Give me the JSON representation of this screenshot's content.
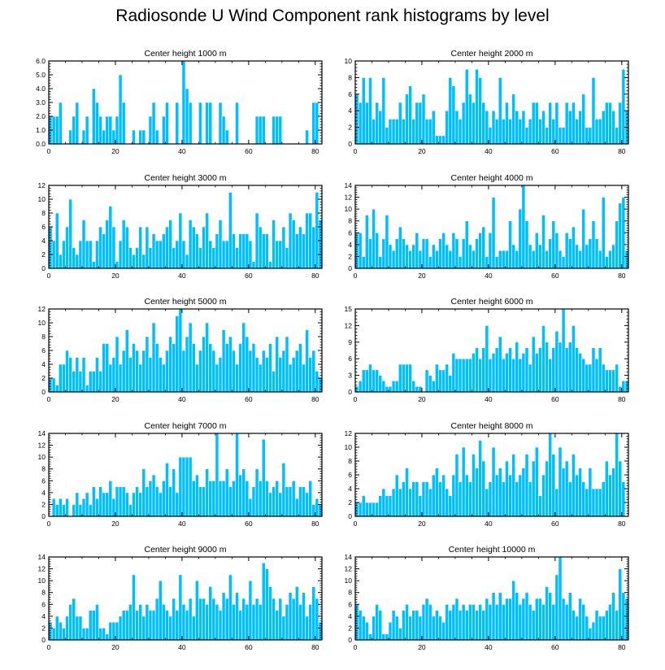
{
  "figure": {
    "title": "Radiosonde U Wind Component rank histograms by level"
  },
  "colors": {
    "bar": "#00bfff",
    "bar_edge": "#ffffff",
    "axis": "#000000"
  },
  "chart_data": [
    {
      "type": "bar",
      "title": "Center height 1000 m",
      "xlim": [
        0,
        82
      ],
      "ylim": [
        0,
        6
      ],
      "xticks": [
        0,
        20,
        40,
        60,
        80
      ],
      "yticks": [
        0,
        1,
        2,
        3,
        4,
        5,
        6
      ],
      "ytick_labels": [
        "0.0",
        "1.0",
        "2.0",
        "3.0",
        "4.0",
        "5.0",
        "6.0"
      ],
      "values": [
        2,
        2,
        2,
        3,
        0,
        0,
        1,
        2,
        3,
        0,
        1,
        2,
        0,
        4,
        3,
        2,
        1,
        2,
        2,
        1,
        2,
        5,
        3,
        0,
        0,
        1,
        0,
        1,
        1,
        0,
        2,
        3,
        1,
        0,
        2,
        3,
        0,
        0,
        3,
        0,
        6,
        4,
        3,
        0,
        0,
        3,
        0,
        3,
        3,
        0,
        0,
        3,
        2,
        1,
        0,
        0,
        3,
        0,
        0,
        0,
        0,
        0,
        2,
        2,
        2,
        0,
        0,
        2,
        2,
        2,
        0,
        0,
        0,
        0,
        0,
        0,
        0,
        1,
        0,
        3,
        3,
        0
      ]
    },
    {
      "type": "bar",
      "title": "Center height 2000 m",
      "xlim": [
        0,
        82
      ],
      "ylim": [
        0,
        10
      ],
      "xticks": [
        0,
        20,
        40,
        60,
        80
      ],
      "yticks": [
        0,
        2,
        4,
        6,
        8,
        10
      ],
      "ytick_labels": [
        "0",
        "2",
        "4",
        "6",
        "8",
        "10"
      ],
      "values": [
        6,
        5,
        8,
        5,
        8,
        3,
        5,
        4,
        8,
        2,
        3,
        3,
        3,
        5,
        3,
        6,
        7,
        3,
        5,
        5,
        6,
        3,
        3,
        4,
        1,
        1,
        1,
        4,
        8,
        7,
        4,
        3,
        5,
        9,
        6,
        5,
        9,
        8,
        5,
        4,
        2,
        4,
        3,
        8,
        3,
        5,
        3,
        6,
        4,
        3,
        4,
        2,
        3,
        5,
        5,
        3,
        4,
        2,
        5,
        3,
        5,
        2,
        2,
        5,
        4,
        5,
        3,
        4,
        6,
        2,
        2,
        8,
        3,
        3,
        4,
        5,
        5,
        4,
        2,
        5,
        9,
        4
      ]
    },
    {
      "type": "bar",
      "title": "Center height 3000 m",
      "xlim": [
        0,
        82
      ],
      "ylim": [
        0,
        12
      ],
      "xticks": [
        0,
        20,
        40,
        60,
        80
      ],
      "yticks": [
        0,
        2,
        4,
        6,
        8,
        10,
        12
      ],
      "ytick_labels": [
        "0",
        "2",
        "4",
        "6",
        "8",
        "10",
        "12"
      ],
      "values": [
        6,
        4,
        8,
        2,
        4,
        6,
        10,
        3,
        2,
        4,
        7,
        4,
        4,
        1,
        4,
        6,
        5,
        7,
        9,
        6,
        1,
        4,
        7,
        6,
        3,
        2,
        3,
        6,
        2,
        6,
        3,
        5,
        4,
        4,
        5,
        6,
        7,
        3,
        4,
        8,
        4,
        2,
        7,
        6,
        5,
        3,
        6,
        8,
        4,
        3,
        5,
        7,
        4,
        4,
        11,
        5,
        3,
        5,
        5,
        5,
        4,
        1,
        8,
        6,
        5,
        5,
        1,
        7,
        4,
        4,
        6,
        3,
        8,
        7,
        5,
        6,
        5,
        8,
        8,
        6,
        11,
        7
      ]
    },
    {
      "type": "bar",
      "title": "Center height 4000 m",
      "xlim": [
        0,
        82
      ],
      "ylim": [
        0,
        14
      ],
      "xticks": [
        0,
        20,
        40,
        60,
        80
      ],
      "yticks": [
        0,
        2,
        4,
        6,
        8,
        10,
        12,
        14
      ],
      "ytick_labels": [
        "0",
        "2",
        "4",
        "6",
        "8",
        "10",
        "12",
        "14"
      ],
      "values": [
        6,
        6,
        2,
        9,
        5,
        10,
        6,
        2,
        5,
        9,
        4,
        3,
        5,
        7,
        5,
        4,
        3,
        4,
        6,
        3,
        5,
        5,
        2,
        4,
        3,
        5,
        6,
        4,
        3,
        6,
        5,
        2,
        5,
        8,
        4,
        3,
        5,
        6,
        7,
        2,
        6,
        12,
        2,
        3,
        3,
        3,
        8,
        4,
        3,
        10,
        14,
        8,
        4,
        3,
        6,
        4,
        9,
        3,
        5,
        8,
        6,
        3,
        2,
        6,
        5,
        7,
        4,
        3,
        10,
        4,
        5,
        8,
        5,
        3,
        12,
        2,
        3,
        4,
        8,
        11,
        12,
        3
      ]
    },
    {
      "type": "bar",
      "title": "Center height 5000 m",
      "xlim": [
        0,
        82
      ],
      "ylim": [
        0,
        12
      ],
      "xticks": [
        0,
        20,
        40,
        60,
        80
      ],
      "yticks": [
        0,
        2,
        4,
        6,
        8,
        10,
        12
      ],
      "ytick_labels": [
        "0",
        "2",
        "4",
        "6",
        "8",
        "10",
        "12"
      ],
      "values": [
        2,
        2,
        1,
        4,
        4,
        6,
        5,
        3,
        5,
        3,
        5,
        1,
        3,
        3,
        5,
        3,
        7,
        7,
        4,
        5,
        8,
        4,
        6,
        9,
        5,
        7,
        6,
        4,
        6,
        8,
        5,
        10,
        7,
        5,
        4,
        6,
        8,
        7,
        11,
        12,
        6,
        8,
        10,
        7,
        4,
        6,
        8,
        10,
        7,
        6,
        4,
        5,
        9,
        7,
        8,
        6,
        4,
        7,
        10,
        8,
        6,
        7,
        5,
        4,
        6,
        5,
        7,
        3,
        8,
        5,
        6,
        8,
        4,
        5,
        6,
        7,
        4,
        9,
        5,
        6,
        3,
        2
      ]
    },
    {
      "type": "bar",
      "title": "Center height 6000 m",
      "xlim": [
        0,
        82
      ],
      "ylim": [
        0,
        15
      ],
      "xticks": [
        0,
        20,
        40,
        60,
        80
      ],
      "yticks": [
        0,
        3,
        6,
        9,
        12,
        15
      ],
      "ytick_labels": [
        "0",
        "3",
        "6",
        "9",
        "12",
        "15"
      ],
      "values": [
        1,
        2,
        4,
        4,
        5,
        4,
        4,
        3,
        2,
        1,
        1,
        2,
        2,
        5,
        5,
        5,
        5,
        2,
        1,
        1,
        0,
        4,
        3,
        2,
        5,
        4,
        4,
        5,
        3,
        7,
        6,
        6,
        6,
        6,
        6,
        7,
        8,
        6,
        8,
        12,
        6,
        7,
        8,
        10,
        6,
        7,
        8,
        6,
        9,
        6,
        7,
        8,
        5,
        10,
        7,
        8,
        12,
        9,
        6,
        8,
        11,
        9,
        15,
        8,
        9,
        12,
        8,
        7,
        6,
        5,
        5,
        8,
        6,
        8,
        5,
        4,
        4,
        4,
        5,
        1,
        2,
        2
      ]
    },
    {
      "type": "bar",
      "title": "Center height 7000 m",
      "xlim": [
        0,
        82
      ],
      "ylim": [
        0,
        14
      ],
      "xticks": [
        0,
        20,
        40,
        60,
        80
      ],
      "yticks": [
        0,
        2,
        4,
        6,
        8,
        10,
        12,
        14
      ],
      "ytick_labels": [
        "0",
        "2",
        "4",
        "6",
        "8",
        "10",
        "12",
        "14"
      ],
      "values": [
        0,
        3,
        2,
        3,
        2,
        3,
        0,
        2,
        4,
        2,
        3,
        4,
        2,
        5,
        3,
        5,
        4,
        4,
        6,
        3,
        5,
        5,
        5,
        4,
        2,
        4,
        5,
        4,
        8,
        5,
        6,
        7,
        5,
        4,
        6,
        9,
        5,
        8,
        4,
        10,
        10,
        10,
        10,
        6,
        7,
        5,
        5,
        8,
        6,
        6,
        14,
        6,
        6,
        8,
        5,
        6,
        14,
        7,
        8,
        6,
        3,
        5,
        8,
        6,
        13,
        6,
        4,
        5,
        6,
        4,
        9,
        5,
        5,
        6,
        3,
        5,
        5,
        4,
        6,
        2,
        3,
        2
      ]
    },
    {
      "type": "bar",
      "title": "Center height 8000 m",
      "xlim": [
        0,
        82
      ],
      "ylim": [
        0,
        12
      ],
      "xticks": [
        0,
        20,
        40,
        60,
        80
      ],
      "yticks": [
        0,
        2,
        4,
        6,
        8,
        10,
        12
      ],
      "ytick_labels": [
        "0",
        "2",
        "4",
        "6",
        "8",
        "10",
        "12"
      ],
      "values": [
        2,
        2,
        3,
        2,
        2,
        2,
        2,
        3,
        4,
        3,
        3,
        4,
        6,
        4,
        5,
        7,
        4,
        5,
        5,
        3,
        5,
        5,
        4,
        6,
        7,
        5,
        6,
        4,
        3,
        6,
        9,
        5,
        10,
        6,
        5,
        9,
        7,
        11,
        8,
        4,
        5,
        10,
        6,
        7,
        5,
        8,
        6,
        9,
        5,
        6,
        7,
        9,
        5,
        8,
        10,
        3,
        6,
        8,
        12,
        9,
        4,
        10,
        7,
        8,
        5,
        9,
        6,
        7,
        5,
        4,
        7,
        4,
        4,
        4,
        5,
        8,
        6,
        7,
        12,
        8,
        5,
        0
      ]
    },
    {
      "type": "bar",
      "title": "Center height 9000 m",
      "xlim": [
        0,
        82
      ],
      "ylim": [
        0,
        14
      ],
      "xticks": [
        0,
        20,
        40,
        60,
        80
      ],
      "yticks": [
        0,
        2,
        4,
        6,
        8,
        10,
        12,
        14
      ],
      "ytick_labels": [
        "0",
        "2",
        "4",
        "6",
        "8",
        "10",
        "12",
        "14"
      ],
      "values": [
        3,
        2,
        4,
        3,
        2,
        4,
        6,
        7,
        4,
        4,
        2,
        2,
        5,
        5,
        6,
        2,
        2,
        1,
        3,
        3,
        3,
        4,
        5,
        5,
        6,
        11,
        5,
        6,
        4,
        6,
        5,
        5,
        7,
        10,
        6,
        5,
        4,
        7,
        5,
        11,
        6,
        5,
        7,
        4,
        10,
        7,
        7,
        6,
        9,
        7,
        6,
        5,
        8,
        7,
        11,
        6,
        8,
        5,
        7,
        6,
        10,
        6,
        7,
        6,
        13,
        12,
        9,
        7,
        5,
        7,
        4,
        6,
        8,
        7,
        9,
        6,
        8,
        4,
        6,
        9,
        7,
        3
      ]
    },
    {
      "type": "bar",
      "title": "Center height 10000 m",
      "xlim": [
        0,
        82
      ],
      "ylim": [
        0,
        14
      ],
      "xticks": [
        0,
        20,
        40,
        60,
        80
      ],
      "yticks": [
        0,
        2,
        4,
        6,
        8,
        10,
        12,
        14
      ],
      "ytick_labels": [
        "0",
        "2",
        "4",
        "6",
        "8",
        "10",
        "12",
        "14"
      ],
      "values": [
        6,
        5,
        4,
        3,
        1,
        4,
        6,
        5,
        1,
        1,
        3,
        5,
        4,
        2,
        5,
        6,
        4,
        5,
        5,
        4,
        6,
        7,
        6,
        4,
        5,
        4,
        3,
        6,
        5,
        6,
        7,
        5,
        6,
        5,
        6,
        6,
        5,
        6,
        5,
        7,
        6,
        8,
        6,
        8,
        6,
        7,
        7,
        10,
        8,
        6,
        7,
        8,
        6,
        5,
        7,
        7,
        6,
        9,
        8,
        6,
        11,
        14,
        7,
        6,
        8,
        5,
        4,
        7,
        6,
        4,
        2,
        3,
        5,
        4,
        4,
        5,
        6,
        8,
        5,
        12,
        8,
        7
      ]
    }
  ]
}
